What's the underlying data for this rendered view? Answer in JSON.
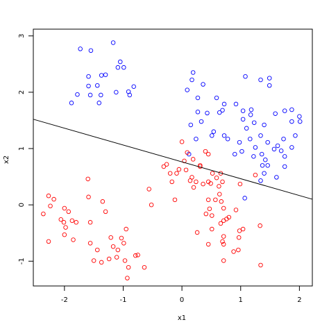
{
  "chart_data": {
    "type": "scatter",
    "xlabel": "x1",
    "ylabel": "x2",
    "xlim": [
      -2.53,
      2.22
    ],
    "ylim": [
      -1.44,
      3.12
    ],
    "xticks": [
      -2,
      -1,
      0,
      1,
      2
    ],
    "yticks": [
      -1,
      0,
      1,
      2,
      3
    ],
    "series": [
      {
        "color": "#0000ff",
        "x": [
          -1.73,
          -1.55,
          -1.17,
          -1.05,
          -0.99,
          -1.09,
          -1.59,
          -1.37,
          -1.3,
          -1.44,
          -1.59,
          -1.56,
          -1.38,
          -1.41,
          -1.78,
          -1.88,
          -1.12,
          -0.91,
          -0.89,
          -0.82,
          0.19,
          0.17,
          0.36,
          0.09,
          0.27,
          0.59,
          1.08,
          1.34,
          1.49,
          1.49,
          0.72,
          0.27,
          0.43,
          0.64,
          0.69,
          0.92,
          1.04,
          1.18,
          1.17,
          1.04,
          1.23,
          1.1,
          1.4,
          1.59,
          1.75,
          1.87,
          2.0,
          0.15,
          0.33,
          0.54,
          0.51,
          0.72,
          0.78,
          0.98,
          1.16,
          1.34,
          1.46,
          1.63,
          1.73,
          1.87,
          1.93,
          2.01,
          1.02,
          0.9,
          1.22,
          1.25,
          1.36,
          1.42,
          1.57,
          1.69,
          1.75,
          1.75,
          1.46,
          1.4,
          1.34,
          1.61,
          1.07,
          1.37,
          0.12,
          0.24,
          1.87
        ],
        "y": [
          2.77,
          2.74,
          2.88,
          2.54,
          2.44,
          2.44,
          2.28,
          2.3,
          2.31,
          2.12,
          2.11,
          1.95,
          1.95,
          1.81,
          1.96,
          1.81,
          2.0,
          2.01,
          1.95,
          2.1,
          2.35,
          2.22,
          2.14,
          2.04,
          1.9,
          1.9,
          2.28,
          2.22,
          2.25,
          2.12,
          1.79,
          1.65,
          1.63,
          1.64,
          1.68,
          1.79,
          1.67,
          1.69,
          1.6,
          1.52,
          1.46,
          1.36,
          1.42,
          1.62,
          1.67,
          1.69,
          1.57,
          1.42,
          1.48,
          1.3,
          1.23,
          1.23,
          1.17,
          1.11,
          1.17,
          1.23,
          1.11,
          1.05,
          1.17,
          1.48,
          1.23,
          1.48,
          0.95,
          0.9,
          0.86,
          1.02,
          0.9,
          0.8,
          0.99,
          0.96,
          0.86,
          0.68,
          0.7,
          0.56,
          0.43,
          0.49,
          0.12,
          0.7,
          0.9,
          1.17,
          1.02
        ]
      },
      {
        "color": "#ff0000",
        "x": [
          -2.36,
          -2.27,
          -2.18,
          -2.24,
          -2.27,
          -2.0,
          -2.06,
          -2.01,
          -1.98,
          -1.93,
          -1.87,
          -1.8,
          -2.0,
          -1.85,
          -1.59,
          -1.6,
          -1.35,
          -1.3,
          -1.56,
          -1.56,
          -1.44,
          -1.5,
          -1.37,
          -1.24,
          -1.21,
          -1.17,
          -1.09,
          -1.03,
          -0.99,
          -0.95,
          -1.11,
          -0.97,
          -0.91,
          -0.93,
          -0.79,
          -0.75,
          -0.64,
          -0.56,
          -0.52,
          -0.31,
          -0.26,
          -0.2,
          -0.17,
          -0.09,
          -0.05,
          0,
          0.04,
          0.07,
          0.09,
          0.14,
          0.17,
          0.2,
          0.24,
          0.31,
          0.36,
          0.4,
          0.45,
          0.45,
          0.49,
          0.52,
          0.59,
          0.63,
          0.66,
          0.69,
          0.64,
          0.67,
          0.71,
          0.57,
          0.45,
          0.47,
          0.51,
          0.41,
          0.51,
          0.45,
          0.26,
          0.66,
          0.71,
          0.71,
          0.69,
          0.71,
          0.76,
          0.8,
          0.71,
          0.88,
          0.96,
          0.97,
          0.98,
          1.04,
          0.92,
          0.99,
          1.25,
          1.33,
          1.34,
          0.19,
          0.31,
          -0.12
        ],
        "y": [
          -0.16,
          0.16,
          0.1,
          -0.02,
          -0.65,
          -0.06,
          -0.26,
          -0.31,
          -0.4,
          -0.12,
          -0.28,
          -0.31,
          -0.53,
          -0.62,
          0.14,
          0.46,
          0.06,
          -0.12,
          -0.31,
          -0.68,
          -0.8,
          -0.99,
          -1.02,
          -0.96,
          -0.58,
          -0.74,
          -0.8,
          -0.59,
          -0.68,
          -0.43,
          -0.93,
          -0.99,
          -1.11,
          -1.3,
          -0.9,
          -0.89,
          -1.11,
          0.28,
          0.0,
          0.68,
          0.72,
          0.56,
          0.41,
          0.56,
          0.63,
          1.12,
          0.78,
          0.62,
          0.93,
          0.43,
          0.49,
          0.31,
          0.41,
          0.7,
          0.37,
          0.95,
          0.9,
          0.41,
          0.38,
          0.56,
          0.48,
          0.33,
          0.56,
          0.41,
          0.19,
          0.06,
          -0.06,
          0.09,
          0.09,
          -0.07,
          -0.19,
          -0.16,
          -0.43,
          -0.7,
          -0.49,
          -0.33,
          -0.28,
          -0.56,
          -0.65,
          -0.7,
          -0.25,
          -0.22,
          -0.99,
          -0.83,
          -0.8,
          -0.58,
          -0.46,
          -0.43,
          -0.09,
          0.37,
          0.53,
          -0.37,
          -1.07,
          0.81,
          0.68,
          0.09
        ]
      }
    ],
    "lines": [
      {
        "color": "#000000",
        "x": [
          -2.53,
          2.22
        ],
        "y": [
          1.52,
          0.1
        ]
      }
    ]
  }
}
